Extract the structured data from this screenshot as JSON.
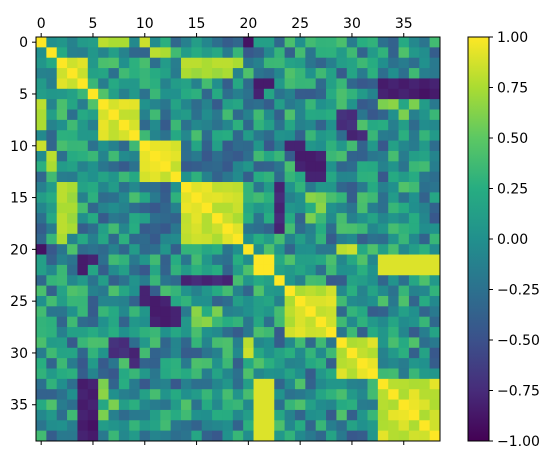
{
  "chart_data": {
    "type": "heatmap",
    "title": "",
    "xlabel": "",
    "ylabel": "",
    "n": 39,
    "x_ticks": [
      0,
      5,
      10,
      15,
      20,
      25,
      30,
      35
    ],
    "y_ticks": [
      0,
      5,
      10,
      15,
      20,
      25,
      30,
      35
    ],
    "x_axis_position": "top",
    "colormap": "viridis",
    "colorbar": {
      "min": -1.0,
      "max": 1.0,
      "ticks": [
        1.0,
        0.75,
        0.5,
        0.25,
        0.0,
        -0.25,
        -0.5,
        -0.75,
        -1.0
      ],
      "tick_labels": [
        "1.00",
        "0.75",
        "0.50",
        "0.25",
        "0.00",
        "−0.25",
        "−0.50",
        "−0.75",
        "−1.00"
      ]
    },
    "blocks": [
      {
        "rows": [
          0,
          0
        ],
        "cols": [
          0,
          0
        ],
        "value": 1.0
      },
      {
        "rows": [
          1,
          1
        ],
        "cols": [
          1,
          1
        ],
        "value": 1.0
      },
      {
        "rows": [
          2,
          4
        ],
        "cols": [
          2,
          4
        ],
        "value": 0.9
      },
      {
        "rows": [
          5,
          5
        ],
        "cols": [
          5,
          5
        ],
        "value": 1.0
      },
      {
        "rows": [
          6,
          9
        ],
        "cols": [
          6,
          9
        ],
        "value": 0.85
      },
      {
        "rows": [
          10,
          13
        ],
        "cols": [
          10,
          13
        ],
        "value": 0.9
      },
      {
        "rows": [
          14,
          19
        ],
        "cols": [
          14,
          19
        ],
        "value": 0.85
      },
      {
        "rows": [
          20,
          20
        ],
        "cols": [
          20,
          20
        ],
        "value": 1.0
      },
      {
        "rows": [
          21,
          22
        ],
        "cols": [
          21,
          22
        ],
        "value": 0.95
      },
      {
        "rows": [
          23,
          23
        ],
        "cols": [
          23,
          23
        ],
        "value": 1.0
      },
      {
        "rows": [
          24,
          28
        ],
        "cols": [
          24,
          28
        ],
        "value": 0.85
      },
      {
        "rows": [
          29,
          32
        ],
        "cols": [
          29,
          32
        ],
        "value": 0.85
      },
      {
        "rows": [
          33,
          38
        ],
        "cols": [
          33,
          38
        ],
        "value": 0.85
      }
    ],
    "notable_cells": [
      {
        "row": 0,
        "col": 6,
        "value": 0.75
      },
      {
        "row": 0,
        "col": 7,
        "value": 0.8
      },
      {
        "row": 0,
        "col": 8,
        "value": 0.75
      },
      {
        "row": 0,
        "col": 10,
        "value": 0.85
      },
      {
        "row": 2,
        "col": 14,
        "value": 0.8
      },
      {
        "row": 2,
        "col": 15,
        "value": 0.8
      },
      {
        "row": 2,
        "col": 16,
        "value": 0.75
      },
      {
        "row": 2,
        "col": 17,
        "value": 0.75
      },
      {
        "row": 2,
        "col": 18,
        "value": 0.8
      },
      {
        "row": 2,
        "col": 19,
        "value": 0.8
      },
      {
        "row": 4,
        "col": 21,
        "value": -0.85
      },
      {
        "row": 4,
        "col": 22,
        "value": -0.8
      },
      {
        "row": 4,
        "col": 33,
        "value": -0.9
      },
      {
        "row": 4,
        "col": 34,
        "value": -0.85
      },
      {
        "row": 4,
        "col": 35,
        "value": -0.9
      },
      {
        "row": 4,
        "col": 36,
        "value": -0.85
      },
      {
        "row": 4,
        "col": 37,
        "value": -0.9
      },
      {
        "row": 4,
        "col": 38,
        "value": -0.85
      },
      {
        "row": 5,
        "col": 33,
        "value": -0.8
      },
      {
        "row": 5,
        "col": 34,
        "value": -0.85
      },
      {
        "row": 5,
        "col": 35,
        "value": -0.8
      },
      {
        "row": 5,
        "col": 36,
        "value": -0.85
      },
      {
        "row": 5,
        "col": 37,
        "value": -0.9
      },
      {
        "row": 5,
        "col": 38,
        "value": -0.85
      },
      {
        "row": 6,
        "col": 0,
        "value": 0.8
      },
      {
        "row": 7,
        "col": 0,
        "value": 0.75
      },
      {
        "row": 7,
        "col": 29,
        "value": -0.7
      },
      {
        "row": 7,
        "col": 30,
        "value": -0.75
      },
      {
        "row": 8,
        "col": 29,
        "value": -0.75
      },
      {
        "row": 8,
        "col": 30,
        "value": -0.7
      },
      {
        "row": 9,
        "col": 30,
        "value": -0.8
      },
      {
        "row": 9,
        "col": 31,
        "value": -0.75
      },
      {
        "row": 10,
        "col": 24,
        "value": -0.8
      },
      {
        "row": 10,
        "col": 25,
        "value": -0.85
      },
      {
        "row": 11,
        "col": 26,
        "value": -0.85
      },
      {
        "row": 11,
        "col": 27,
        "value": -0.8
      },
      {
        "row": 12,
        "col": 25,
        "value": -0.8
      },
      {
        "row": 12,
        "col": 26,
        "value": -0.85
      },
      {
        "row": 13,
        "col": 26,
        "value": -0.8
      },
      {
        "row": 13,
        "col": 27,
        "value": -0.8
      },
      {
        "row": 11,
        "col": 1,
        "value": 0.8
      },
      {
        "row": 12,
        "col": 1,
        "value": 0.75
      },
      {
        "row": 14,
        "col": 2,
        "value": 0.8
      },
      {
        "row": 15,
        "col": 2,
        "value": 0.8
      },
      {
        "row": 16,
        "col": 2,
        "value": 0.75
      },
      {
        "row": 17,
        "col": 2,
        "value": 0.8
      },
      {
        "row": 18,
        "col": 2,
        "value": 0.8
      },
      {
        "row": 19,
        "col": 2,
        "value": 0.75
      },
      {
        "row": 14,
        "col": 3,
        "value": 0.75
      },
      {
        "row": 15,
        "col": 3,
        "value": 0.7
      },
      {
        "row": 16,
        "col": 3,
        "value": 0.75
      },
      {
        "row": 17,
        "col": 3,
        "value": 0.7
      },
      {
        "row": 18,
        "col": 3,
        "value": 0.75
      },
      {
        "row": 14,
        "col": 23,
        "value": -0.7
      },
      {
        "row": 15,
        "col": 23,
        "value": -0.75
      },
      {
        "row": 16,
        "col": 23,
        "value": -0.8
      },
      {
        "row": 17,
        "col": 23,
        "value": -0.75
      },
      {
        "row": 18,
        "col": 23,
        "value": -0.8
      },
      {
        "row": 15,
        "col": 26,
        "value": 0.65
      },
      {
        "row": 15,
        "col": 27,
        "value": 0.6
      },
      {
        "row": 16,
        "col": 27,
        "value": 0.65
      },
      {
        "row": 17,
        "col": 26,
        "value": 0.6
      },
      {
        "row": 20,
        "col": 0,
        "value": -0.9
      },
      {
        "row": 20,
        "col": 29,
        "value": 0.8
      },
      {
        "row": 20,
        "col": 30,
        "value": 0.85
      },
      {
        "row": 21,
        "col": 33,
        "value": 0.85
      },
      {
        "row": 21,
        "col": 34,
        "value": 0.85
      },
      {
        "row": 21,
        "col": 35,
        "value": 0.85
      },
      {
        "row": 21,
        "col": 36,
        "value": 0.85
      },
      {
        "row": 21,
        "col": 37,
        "value": 0.85
      },
      {
        "row": 21,
        "col": 38,
        "value": 0.85
      },
      {
        "row": 22,
        "col": 33,
        "value": 0.85
      },
      {
        "row": 22,
        "col": 34,
        "value": 0.85
      },
      {
        "row": 22,
        "col": 35,
        "value": 0.85
      },
      {
        "row": 22,
        "col": 36,
        "value": 0.85
      },
      {
        "row": 22,
        "col": 37,
        "value": 0.85
      },
      {
        "row": 22,
        "col": 38,
        "value": 0.85
      },
      {
        "row": 22,
        "col": 4,
        "value": -0.85
      },
      {
        "row": 21,
        "col": 5,
        "value": -0.8
      },
      {
        "row": 23,
        "col": 14,
        "value": -0.8
      },
      {
        "row": 23,
        "col": 15,
        "value": -0.75
      },
      {
        "row": 23,
        "col": 16,
        "value": -0.8
      },
      {
        "row": 23,
        "col": 17,
        "value": -0.75
      },
      {
        "row": 23,
        "col": 18,
        "value": -0.8
      },
      {
        "row": 25,
        "col": 10,
        "value": -0.8
      },
      {
        "row": 25,
        "col": 11,
        "value": -0.85
      },
      {
        "row": 26,
        "col": 12,
        "value": -0.85
      },
      {
        "row": 26,
        "col": 13,
        "value": -0.8
      },
      {
        "row": 27,
        "col": 11,
        "value": -0.8
      },
      {
        "row": 27,
        "col": 12,
        "value": -0.85
      },
      {
        "row": 29,
        "col": 20,
        "value": 0.8
      },
      {
        "row": 30,
        "col": 20,
        "value": 0.85
      },
      {
        "row": 33,
        "col": 21,
        "value": 0.9
      },
      {
        "row": 34,
        "col": 21,
        "value": 0.9
      },
      {
        "row": 35,
        "col": 21,
        "value": 0.9
      },
      {
        "row": 36,
        "col": 21,
        "value": 0.9
      },
      {
        "row": 37,
        "col": 21,
        "value": 0.9
      },
      {
        "row": 38,
        "col": 21,
        "value": 0.9
      },
      {
        "row": 33,
        "col": 22,
        "value": 0.9
      },
      {
        "row": 34,
        "col": 22,
        "value": 0.9
      },
      {
        "row": 35,
        "col": 22,
        "value": 0.9
      },
      {
        "row": 36,
        "col": 22,
        "value": 0.9
      },
      {
        "row": 37,
        "col": 22,
        "value": 0.9
      },
      {
        "row": 38,
        "col": 22,
        "value": 0.9
      },
      {
        "row": 33,
        "col": 4,
        "value": -0.85
      },
      {
        "row": 34,
        "col": 4,
        "value": -0.8
      },
      {
        "row": 35,
        "col": 4,
        "value": -0.85
      },
      {
        "row": 36,
        "col": 4,
        "value": -0.8
      },
      {
        "row": 37,
        "col": 4,
        "value": -0.85
      },
      {
        "row": 38,
        "col": 4,
        "value": -0.8
      },
      {
        "row": 33,
        "col": 6,
        "value": 0.6
      },
      {
        "row": 34,
        "col": 6,
        "value": 0.65
      },
      {
        "row": 35,
        "col": 7,
        "value": 0.6
      },
      {
        "row": 36,
        "col": 6,
        "value": 0.6
      }
    ]
  }
}
